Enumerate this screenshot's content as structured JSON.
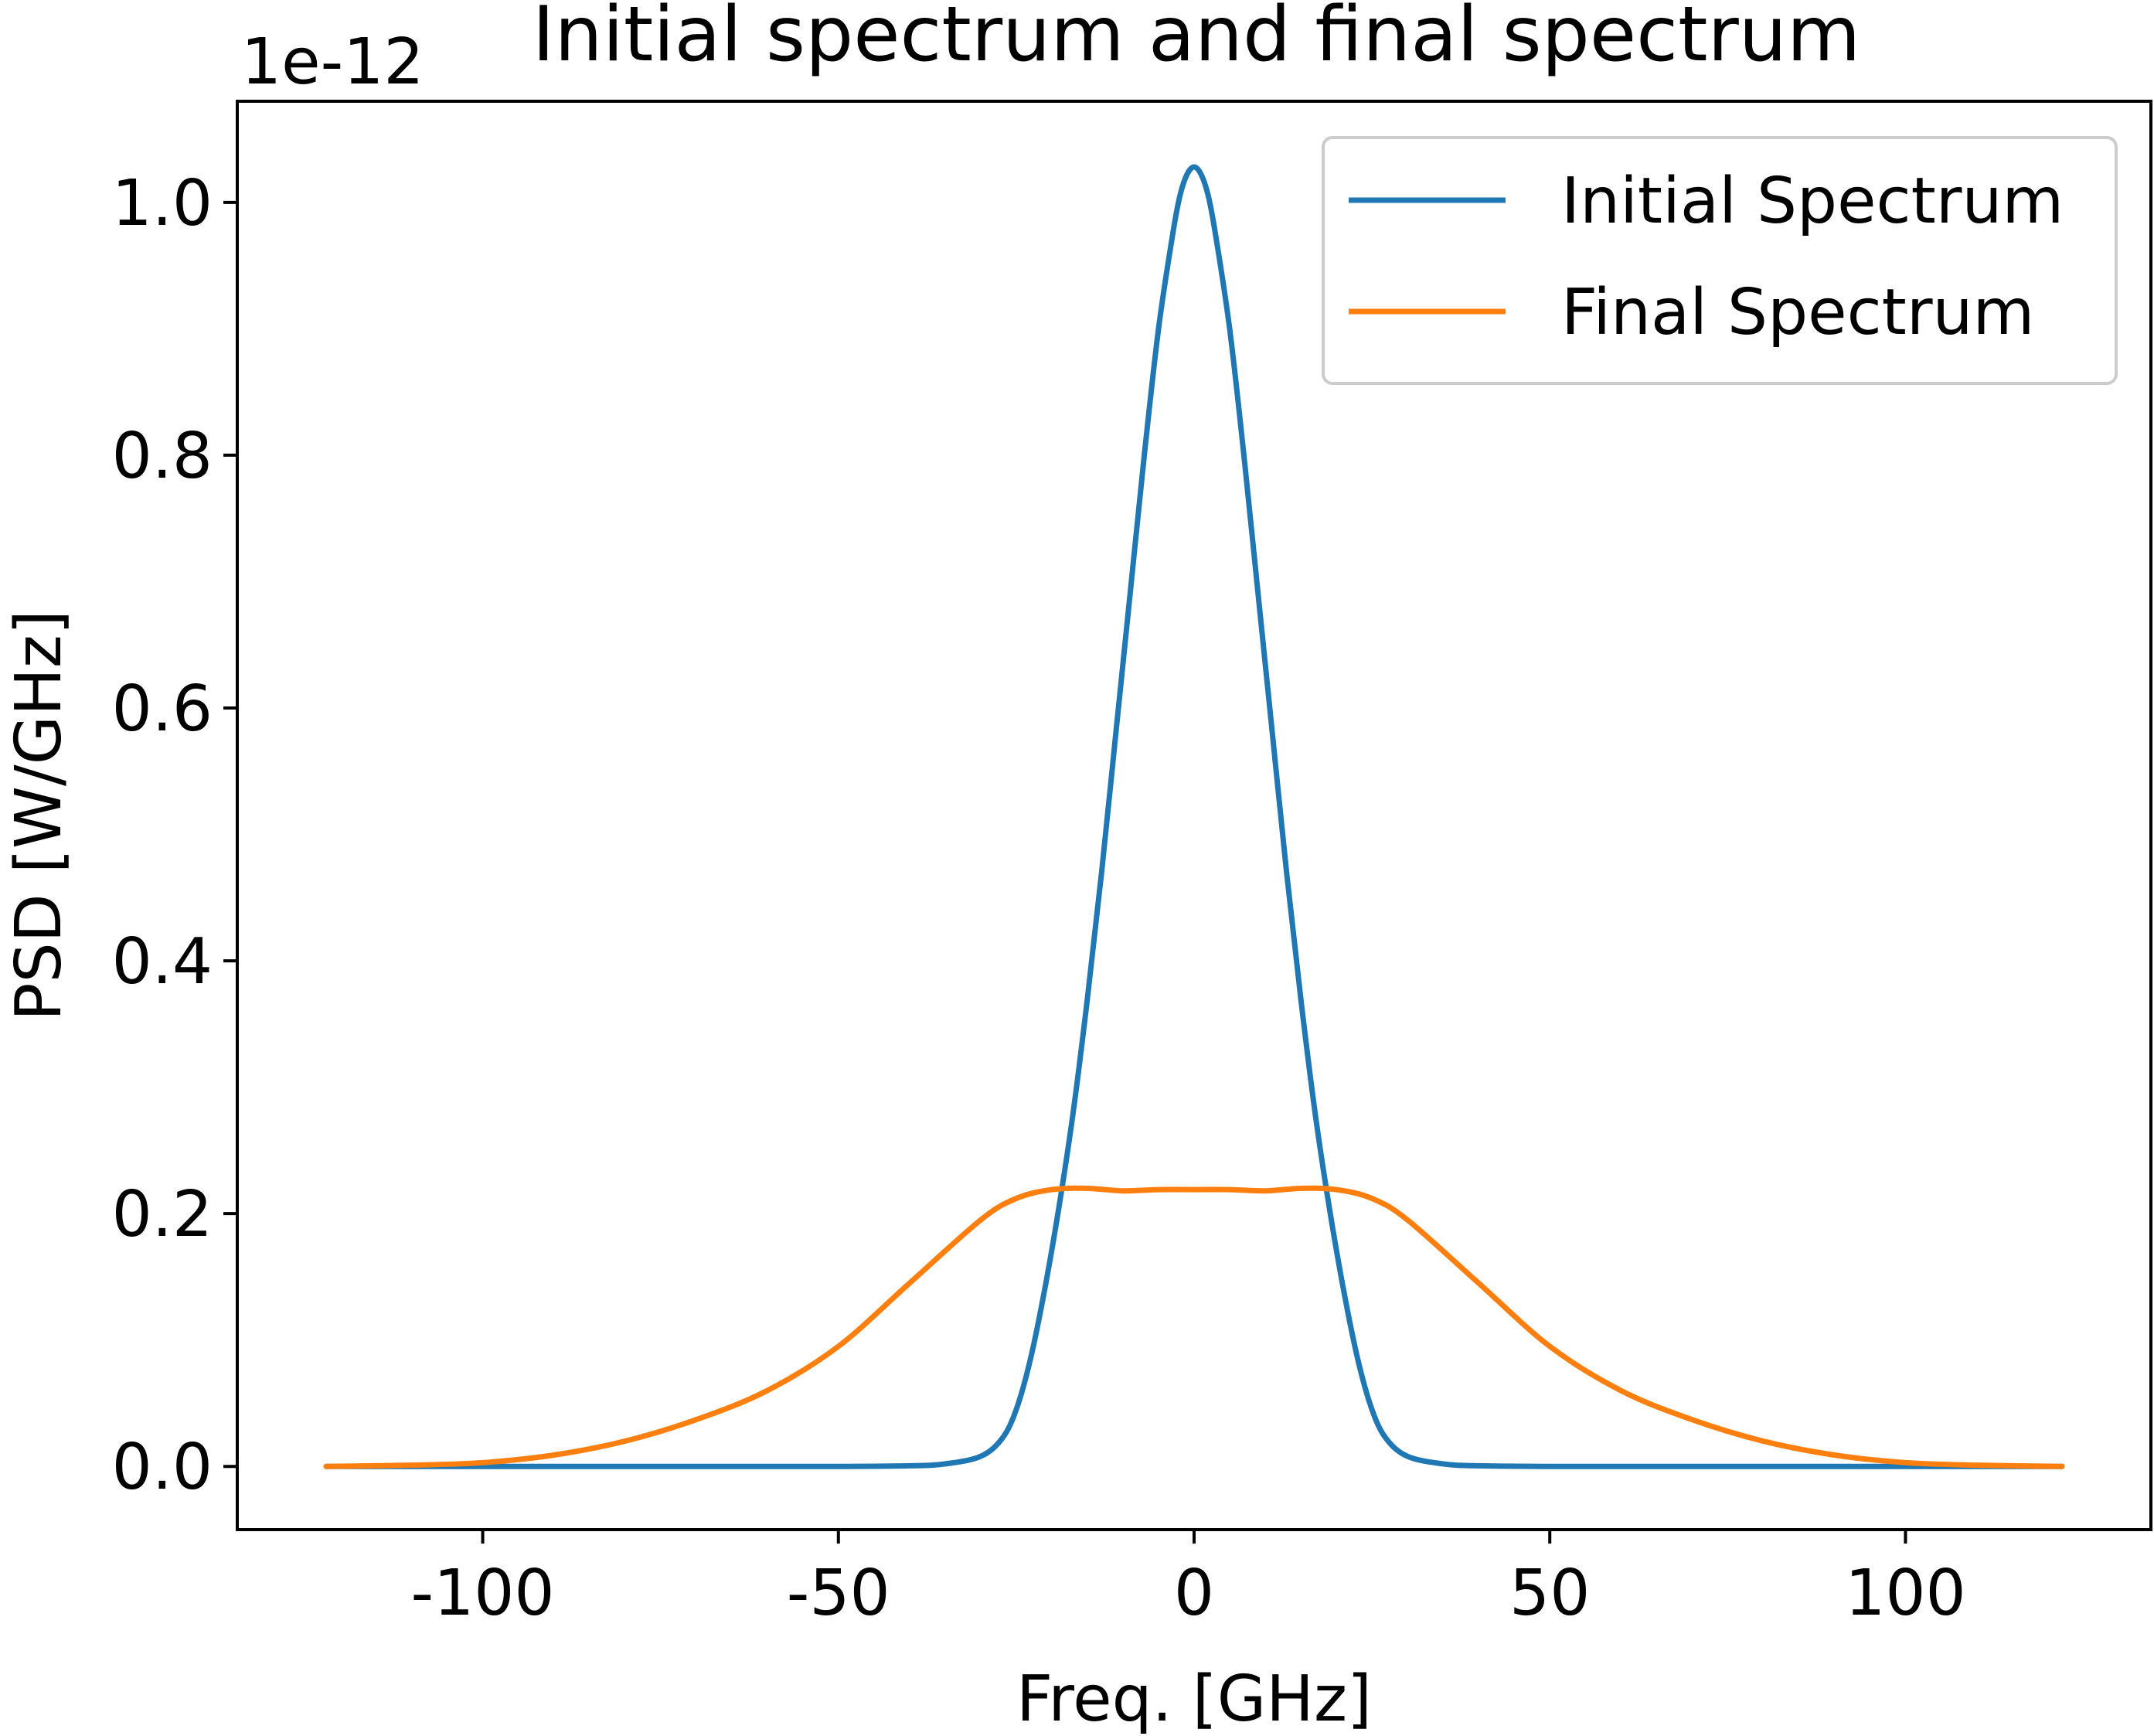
{
  "chart_data": {
    "type": "line",
    "title": "Initial spectrum and final spectrum",
    "xlabel": "Freq. [GHz]",
    "ylabel": "PSD [W/GHz]",
    "y_offset_label": "1e-12",
    "xlim": [
      -134.5,
      134.5
    ],
    "ylim": [
      -0.05,
      1.08
    ],
    "x_ticks": [
      {
        "value": -100,
        "label": "-100"
      },
      {
        "value": -50,
        "label": "-50"
      },
      {
        "value": 0,
        "label": "0"
      },
      {
        "value": 50,
        "label": "50"
      },
      {
        "value": 100,
        "label": "100"
      }
    ],
    "y_ticks": [
      {
        "value": 0.0,
        "label": "0.0"
      },
      {
        "value": 0.2,
        "label": "0.2"
      },
      {
        "value": 0.4,
        "label": "0.4"
      },
      {
        "value": 0.6,
        "label": "0.6"
      },
      {
        "value": 0.8,
        "label": "0.8"
      },
      {
        "value": 1.0,
        "label": "1.0"
      }
    ],
    "grid": false,
    "legend_position": "top-right",
    "series": [
      {
        "name": "Initial Spectrum",
        "color": "#1f77b4",
        "x": [
          -122,
          -100,
          -80,
          -60,
          -50,
          -40,
          -35,
          -30,
          -27,
          -25,
          -23,
          -21,
          -19,
          -17,
          -15,
          -13,
          -11,
          -9,
          -7,
          -5,
          -3,
          -2,
          -1,
          0,
          1,
          2,
          3,
          5,
          7,
          9,
          11,
          13,
          15,
          17,
          19,
          21,
          23,
          25,
          27,
          30,
          35,
          40,
          50,
          60,
          80,
          100,
          122
        ],
        "y": [
          0,
          0,
          0,
          0,
          0,
          0.0005,
          0.002,
          0.008,
          0.022,
          0.045,
          0.085,
          0.14,
          0.205,
          0.28,
          0.37,
          0.47,
          0.58,
          0.69,
          0.8,
          0.9,
          0.975,
          1.005,
          1.022,
          1.028,
          1.022,
          1.005,
          0.975,
          0.9,
          0.8,
          0.69,
          0.58,
          0.47,
          0.37,
          0.28,
          0.205,
          0.14,
          0.085,
          0.045,
          0.022,
          0.008,
          0.002,
          0.0005,
          0,
          0,
          0,
          0,
          0
        ]
      },
      {
        "name": "Final Spectrum",
        "color": "#ff7f0e",
        "x": [
          -122,
          -110,
          -100,
          -90,
          -80,
          -70,
          -60,
          -50,
          -40,
          -30,
          -25,
          -20,
          -15,
          -10,
          -5,
          0,
          5,
          10,
          15,
          20,
          25,
          30,
          40,
          50,
          60,
          70,
          80,
          90,
          100,
          110,
          122
        ],
        "y": [
          0,
          0.001,
          0.003,
          0.009,
          0.02,
          0.037,
          0.06,
          0.095,
          0.145,
          0.195,
          0.212,
          0.219,
          0.22,
          0.218,
          0.219,
          0.219,
          0.219,
          0.218,
          0.22,
          0.219,
          0.212,
          0.195,
          0.145,
          0.095,
          0.06,
          0.037,
          0.02,
          0.009,
          0.003,
          0.001,
          0
        ]
      }
    ]
  }
}
